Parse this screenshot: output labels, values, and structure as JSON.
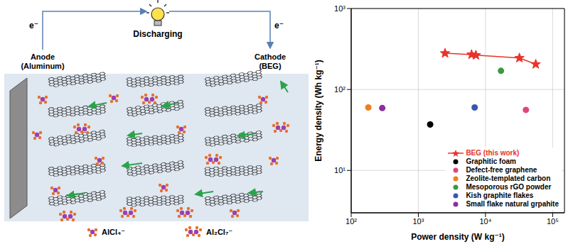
{
  "diagram": {
    "electron_labels": [
      "e⁻",
      "e⁻"
    ],
    "load_label": "Discharging",
    "anode": [
      "Anode",
      "(Aluminum)"
    ],
    "cathode": [
      "Cathode",
      "(BEG)"
    ],
    "ion_legend": [
      "AlCl₄⁻",
      "Al₂Cl₇⁻"
    ]
  },
  "chart_data": {
    "type": "scatter",
    "log": true,
    "grid": true,
    "legend": "lower right",
    "x_label": "Power density (W kg⁻¹)",
    "y_label": "Energy density (Wh kg⁻¹)",
    "xlim": [
      100,
      150000
    ],
    "ylim": [
      3,
      1000
    ],
    "xticks": [
      {
        "value": 100,
        "label": "10²"
      },
      {
        "value": 1000,
        "label": "10³"
      },
      {
        "value": 10000,
        "label": "10⁴"
      },
      {
        "value": 100000,
        "label": "10⁵"
      }
    ],
    "yticks": [
      {
        "value": 10,
        "label": "10¹"
      },
      {
        "value": 100,
        "label": "10²"
      },
      {
        "value": 1000,
        "label": "10³"
      }
    ],
    "series": [
      {
        "name": "BEG (this work)",
        "color": "#e8332a",
        "marker": "star",
        "line_style": "solid",
        "x": [
          2500,
          6200,
          7200,
          32000,
          56000
        ],
        "values": [
          280,
          270,
          265,
          245,
          205
        ]
      },
      {
        "name": "Graphitic foam",
        "color": "#000000",
        "marker": "circle",
        "x": [
          1500
        ],
        "values": [
          37
        ]
      },
      {
        "name": "Defect-free graphene",
        "color": "#e0457b",
        "marker": "circle",
        "x": [
          40000
        ],
        "values": [
          56
        ]
      },
      {
        "name": "Zeolite-templated carbon",
        "color": "#f07f1b",
        "marker": "circle",
        "x": [
          180
        ],
        "values": [
          60
        ]
      },
      {
        "name": "Mesoporous rGO powder",
        "color": "#3a9a3e",
        "marker": "circle",
        "x": [
          17000
        ],
        "values": [
          170
        ]
      },
      {
        "name": "Kish graphite flakes",
        "color": "#3b55b0",
        "marker": "circle",
        "x": [
          6900
        ],
        "values": [
          60
        ]
      },
      {
        "name": "Small flake natural grpahite",
        "color": "#8a2fa0",
        "marker": "circle",
        "x": [
          290
        ],
        "values": [
          59
        ]
      }
    ]
  }
}
